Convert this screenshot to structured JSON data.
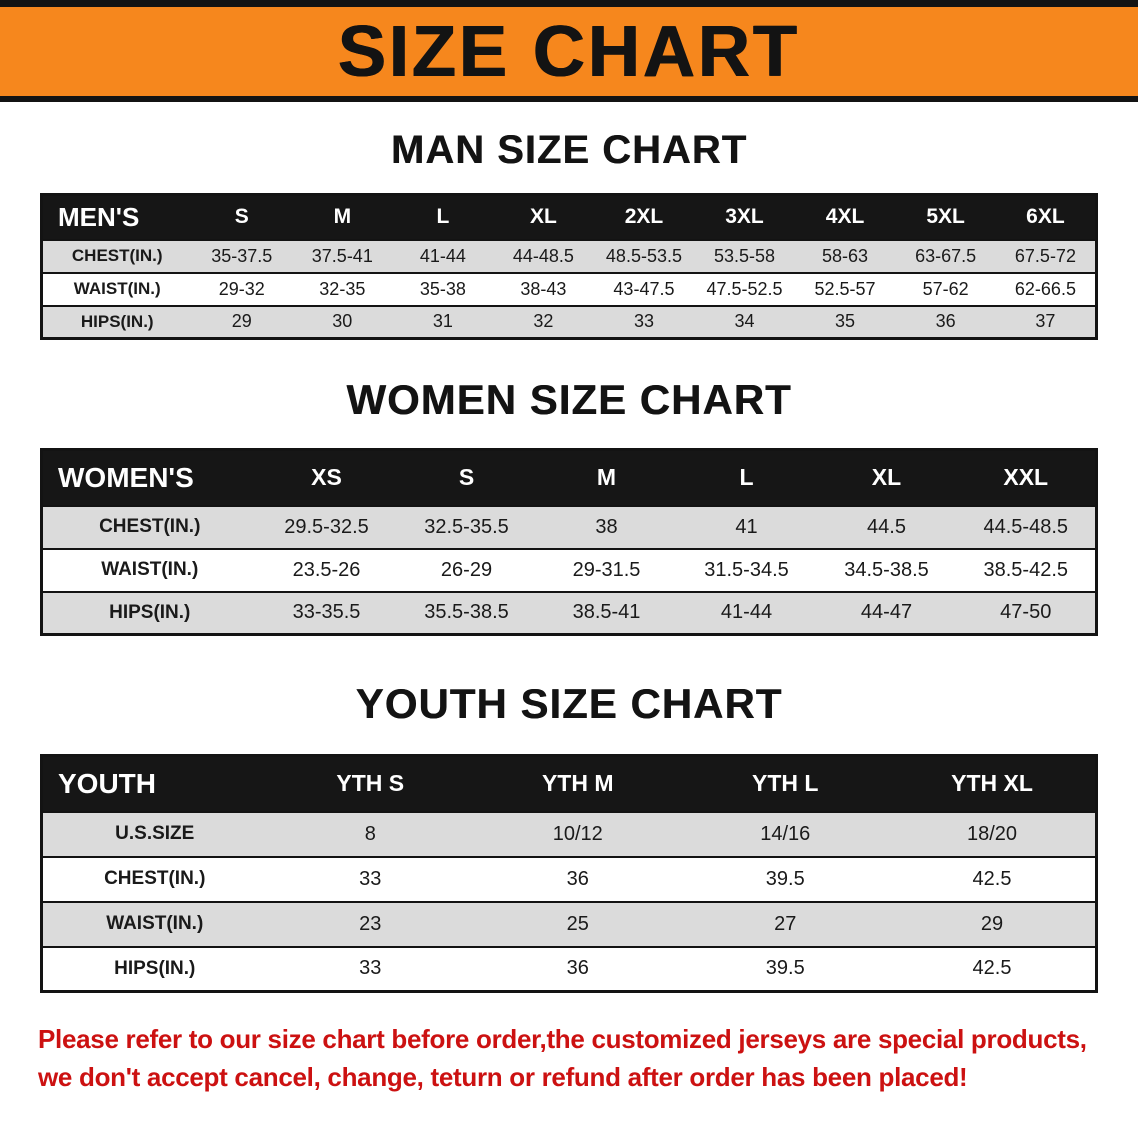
{
  "banner": {
    "title": "SIZE CHART"
  },
  "sections": {
    "men": {
      "heading": "MAN SIZE CHART",
      "table": {
        "header": [
          "MEN'S",
          "S",
          "M",
          "L",
          "XL",
          "2XL",
          "3XL",
          "4XL",
          "5XL",
          "6XL"
        ],
        "rows": [
          [
            "CHEST(IN.)",
            "35-37.5",
            "37.5-41",
            "41-44",
            "44-48.5",
            "48.5-53.5",
            "53.5-58",
            "58-63",
            "63-67.5",
            "67.5-72"
          ],
          [
            "WAIST(IN.)",
            "29-32",
            "32-35",
            "35-38",
            "38-43",
            "43-47.5",
            "47.5-52.5",
            "52.5-57",
            "57-62",
            "62-66.5"
          ],
          [
            "HIPS(IN.)",
            "29",
            "30",
            "31",
            "32",
            "33",
            "34",
            "35",
            "36",
            "37"
          ]
        ]
      }
    },
    "women": {
      "heading": "WOMEN SIZE CHART",
      "table": {
        "header": [
          "WOMEN'S",
          "XS",
          "S",
          "M",
          "L",
          "XL",
          "XXL"
        ],
        "rows": [
          [
            "CHEST(IN.)",
            "29.5-32.5",
            "32.5-35.5",
            "38",
            "41",
            "44.5",
            "44.5-48.5"
          ],
          [
            "WAIST(IN.)",
            "23.5-26",
            "26-29",
            "29-31.5",
            "31.5-34.5",
            "34.5-38.5",
            "38.5-42.5"
          ],
          [
            "HIPS(IN.)",
            "33-35.5",
            "35.5-38.5",
            "38.5-41",
            "41-44",
            "44-47",
            "47-50"
          ]
        ]
      }
    },
    "youth": {
      "heading": "YOUTH SIZE CHART",
      "table": {
        "header": [
          "YOUTH",
          "YTH S",
          "YTH M",
          "YTH L",
          "YTH XL"
        ],
        "rows": [
          [
            "U.S.SIZE",
            "8",
            "10/12",
            "14/16",
            "18/20"
          ],
          [
            "CHEST(IN.)",
            "33",
            "36",
            "39.5",
            "42.5"
          ],
          [
            "WAIST(IN.)",
            "23",
            "25",
            "27",
            "29"
          ],
          [
            "HIPS(IN.)",
            "33",
            "36",
            "39.5",
            "42.5"
          ]
        ]
      }
    }
  },
  "footer": {
    "line1": "Please refer to our size chart before order,the customized jerseys are special products,",
    "line2": "we don't accept cancel, change, teturn or refund after order has been placed!"
  },
  "colors": {
    "banner_bg": "#F6871D",
    "table_header_bg": "#161616",
    "row_stripe": "#DBDBDB",
    "border": "#131313",
    "footer_text": "#CC1111"
  }
}
